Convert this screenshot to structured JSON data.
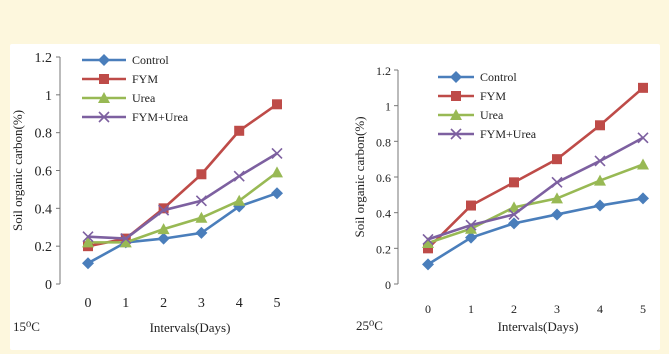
{
  "colors": {
    "Control": "#4a7ebb",
    "FYM": "#be4b48",
    "Urea": "#98b954",
    "FYM+Urea": "#7d60a0"
  },
  "chart_data": [
    {
      "type": "line",
      "condition": "15⁰C",
      "xlabel": "Intervals(Days)",
      "ylabel": "Soil organic carbon(%)",
      "x": [
        0,
        1,
        2,
        3,
        4,
        5
      ],
      "x_tick_labels": [
        "0",
        "1",
        "2",
        "3",
        "4",
        "5"
      ],
      "ylim": [
        0,
        1.2
      ],
      "y_tick_labels": [
        "0",
        "0.2",
        "0.4",
        "0.6",
        "0.8",
        "1",
        "1.2"
      ],
      "legend": "top-left",
      "series": [
        {
          "name": "Control",
          "marker": "diamond",
          "values": [
            0.11,
            0.22,
            0.24,
            0.27,
            0.41,
            0.48
          ]
        },
        {
          "name": "FYM",
          "marker": "square",
          "values": [
            0.2,
            0.24,
            0.4,
            0.58,
            0.81,
            0.95
          ]
        },
        {
          "name": "Urea",
          "marker": "triangle",
          "values": [
            0.22,
            0.22,
            0.29,
            0.35,
            0.44,
            0.59
          ]
        },
        {
          "name": "FYM+Urea",
          "marker": "x",
          "values": [
            0.25,
            0.24,
            0.39,
            0.44,
            0.57,
            0.69
          ]
        }
      ]
    },
    {
      "type": "line",
      "condition": "25⁰C",
      "xlabel": "Intervals(Days)",
      "ylabel": "Soil organic carbon(%)",
      "x": [
        0,
        1,
        2,
        3,
        4,
        5
      ],
      "x_tick_labels": [
        "0",
        "1",
        "2",
        "3",
        "4",
        "5"
      ],
      "ylim": [
        0,
        1.2
      ],
      "y_tick_labels": [
        "0",
        "0.2",
        "0.4",
        "0.6",
        "0.8",
        "1",
        "1.2"
      ],
      "legend": "top-left",
      "series": [
        {
          "name": "Control",
          "marker": "diamond",
          "values": [
            0.11,
            0.26,
            0.34,
            0.39,
            0.44,
            0.48
          ]
        },
        {
          "name": "FYM",
          "marker": "square",
          "values": [
            0.2,
            0.44,
            0.57,
            0.7,
            0.89,
            1.1
          ]
        },
        {
          "name": "Urea",
          "marker": "triangle",
          "values": [
            0.23,
            0.31,
            0.43,
            0.48,
            0.58,
            0.67
          ]
        },
        {
          "name": "FYM+Urea",
          "marker": "x",
          "values": [
            0.25,
            0.33,
            0.39,
            0.57,
            0.69,
            0.82
          ]
        }
      ]
    }
  ]
}
